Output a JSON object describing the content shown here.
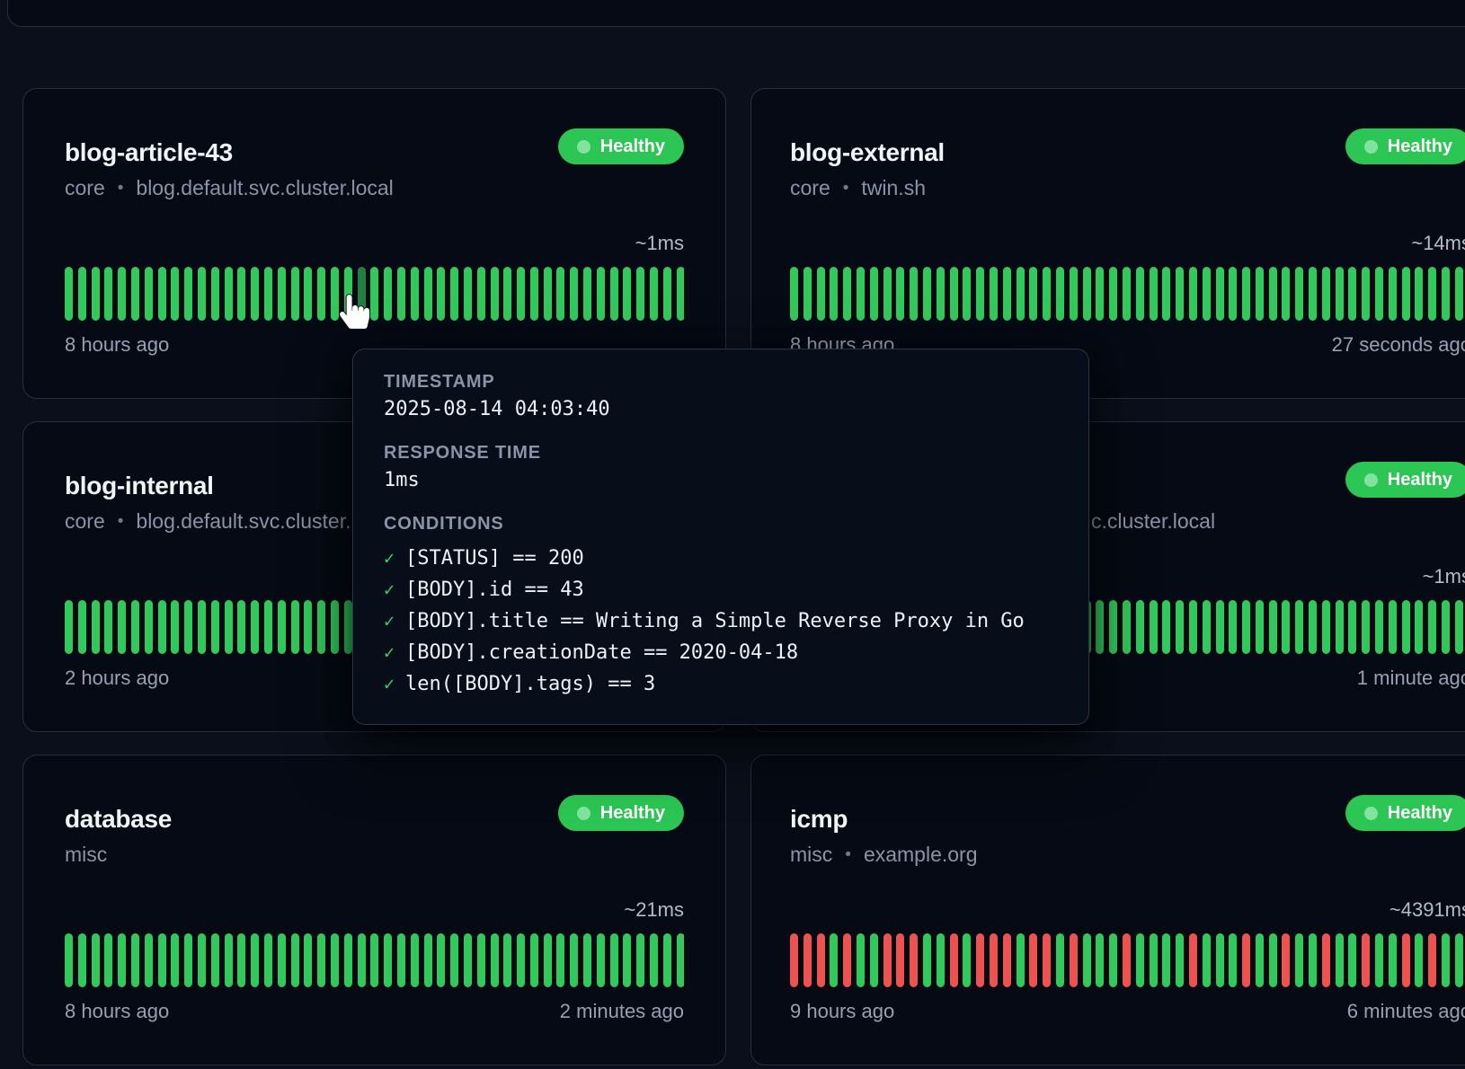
{
  "colors": {
    "page_background": "#0a0f1b",
    "card_background": "#050a14",
    "bar_healthy_green": "#32c95c",
    "bar_unhealthy_red": "#ee5250",
    "bar_hovered_green": "#217f41",
    "badge_green": "#2bc653"
  },
  "legend": {
    "bullet": "•",
    "check_mark": "✓"
  },
  "cards": [
    {
      "slot": "r0-left",
      "title": "blog-article-43",
      "group": "core",
      "endpoint": "blog.default.svc.cluster.local",
      "status": "Healthy",
      "avg_response": "~1ms",
      "oldest": "8 hours ago",
      "newest": "",
      "subtitle_fragment": "",
      "bars": "GGGGGGGGGGGGGGGGGGGGGGGGGGGGGGGGGGGGGGGGGGGGGGG",
      "hover_index": 22
    },
    {
      "slot": "r0-right",
      "title": "blog-external",
      "group": "core",
      "endpoint": "twin.sh",
      "status": "Healthy",
      "avg_response": "~14ms",
      "oldest": "8 hours ago",
      "newest": "27 seconds ago",
      "subtitle_fragment": "",
      "bars": "GGGGGGGGGGGGGGGGGGGGGGGGGGGGGGGGGGGGGGGGGGGGGGGGGGGG",
      "hover_index": null
    },
    {
      "slot": "r1-left",
      "title": "blog-internal",
      "group": "core",
      "endpoint": "blog.default.svc.cluster.local",
      "status": "",
      "avg_response": "",
      "oldest": "2 hours ago",
      "newest": "",
      "subtitle_fragment": "",
      "bars": "GGGGGGGGGGGGGGGGGGGGGGGGGGGGGGGGGGGGGGGGGGGGGGG",
      "hover_index": null
    },
    {
      "slot": "r1-right",
      "title": "",
      "group": "",
      "endpoint": "",
      "status": "Healthy",
      "avg_response": "~1ms",
      "oldest": "",
      "newest": "1 minute ago",
      "subtitle_fragment": "c.cluster.local",
      "bars": "GGGGGGGGGGGGGGGGGGGGGGGGGGGGGGGGGGGGGGGGGGGGGGGGGGGG",
      "hover_index": null
    },
    {
      "slot": "r2-left",
      "title": "database",
      "group": "misc",
      "endpoint": "",
      "status": "Healthy",
      "avg_response": "~21ms",
      "oldest": "8 hours ago",
      "newest": "2 minutes ago",
      "subtitle_fragment": "",
      "bars": "GGGGGGGGGGGGGGGGGGGGGGGGGGGGGGGGGGGGGGGGGGGGGGG",
      "hover_index": null
    },
    {
      "slot": "r2-right",
      "title": "icmp",
      "group": "misc",
      "endpoint": "example.org",
      "status": "Healthy",
      "avg_response": "~4391ms",
      "oldest": "9 hours ago",
      "newest": "6 minutes ago",
      "subtitle_fragment": "",
      "bars": "RRRGRGGRRRGGRGRRRGRRGRGGGRGGGGRGGGRGGRGGRGGRGGRGRGGG",
      "hover_index": null
    }
  ],
  "tooltip": {
    "timestamp_label": "TIMESTAMP",
    "timestamp_value": "2025-08-14 04:03:40",
    "response_time_label": "RESPONSE TIME",
    "response_time_value": "1ms",
    "conditions_label": "CONDITIONS",
    "conditions": [
      "[STATUS] == 200",
      "[BODY].id == 43",
      "[BODY].title == Writing a Simple Reverse Proxy in Go",
      "[BODY].creationDate == 2020-04-18",
      "len([BODY].tags) == 3"
    ]
  }
}
